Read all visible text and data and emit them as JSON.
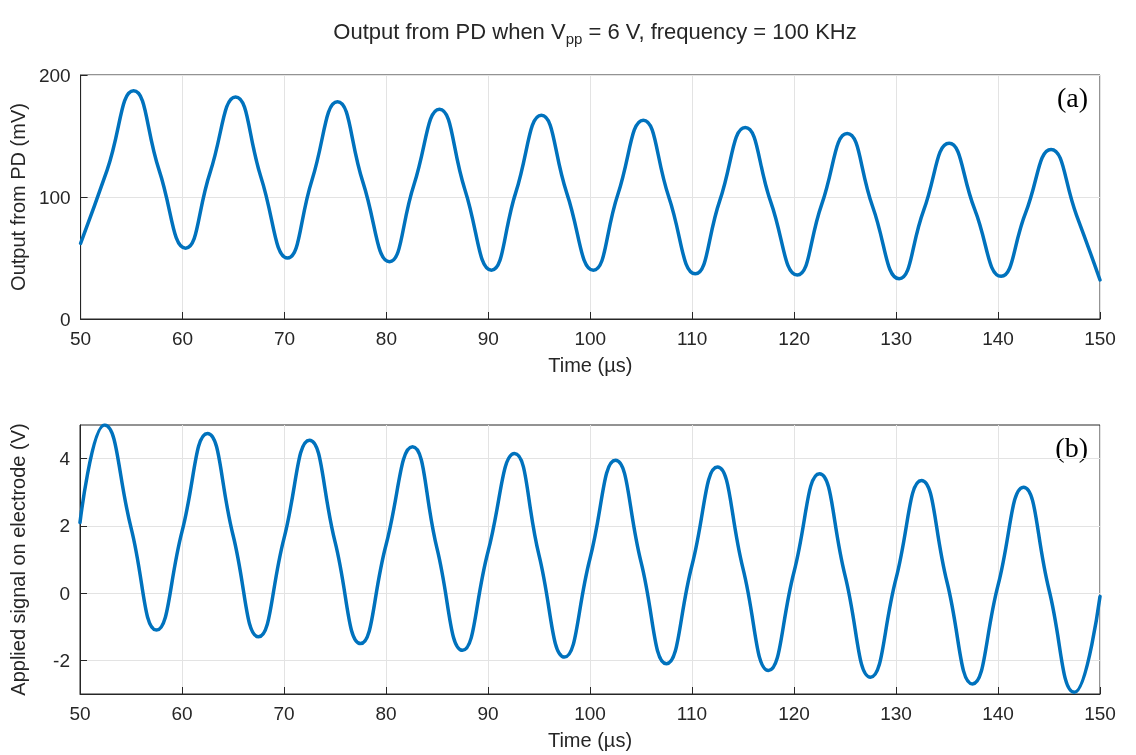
{
  "chart_data": [
    {
      "type": "line",
      "title": "Output from PD when V$_{pp}$ = 6 V, frequency = 100 KHz",
      "xlabel": "Time (µs)",
      "ylabel": "Output from PD (mV)",
      "annotations": [
        "(a)"
      ],
      "x": [
        50,
        52.6,
        55.2,
        57.7,
        60.3,
        62.7,
        65.2,
        67.7,
        70.3,
        72.7,
        75.2,
        77.7,
        80.3,
        82.7,
        85.2,
        87.7,
        90.3,
        92.7,
        95.2,
        97.7,
        100.3,
        102.7,
        105.2,
        107.7,
        110.3,
        112.7,
        115.2,
        117.7,
        120.3,
        122.7,
        125.2,
        127.7,
        130.3,
        132.7,
        135.2,
        137.7,
        140.3,
        142.7,
        145.2,
        147.7,
        150
      ],
      "series": [
        {
          "color": "#0072bd",
          "values": [
            62,
            122,
            187,
            122,
            58,
            120,
            182,
            116,
            50,
            114,
            178,
            112,
            47,
            110,
            172,
            106,
            40,
            104,
            167,
            103,
            40,
            102,
            163,
            100,
            37,
            97,
            157,
            96,
            36,
            94,
            152,
            92,
            33,
            89,
            144,
            90,
            35,
            87,
            139,
            85,
            32
          ]
        }
      ],
      "xlim": [
        50,
        150
      ],
      "xticks": [
        50,
        60,
        70,
        80,
        90,
        100,
        110,
        120,
        130,
        140,
        150
      ],
      "ylim": [
        0,
        200
      ],
      "yticks": [
        0,
        100,
        200
      ],
      "grid": true,
      "marker": "none",
      "line_style": "solid"
    },
    {
      "type": "line",
      "xlabel": "Time (µs)",
      "ylabel": "Applied signal on electrode (V)",
      "annotations": [
        "(b)"
      ],
      "x": [
        50,
        52.4,
        55,
        57.5,
        60,
        62.5,
        65,
        67.5,
        70,
        72.5,
        75,
        77.5,
        80,
        82.6,
        85,
        87.5,
        90,
        92.6,
        95,
        97.5,
        100,
        102.5,
        105,
        107.5,
        110,
        112.5,
        115,
        117.5,
        120,
        122.5,
        125,
        127.5,
        130,
        132.5,
        135,
        137.5,
        140,
        142.5,
        145,
        147.5,
        150
      ],
      "series": [
        {
          "color": "#0072bd",
          "values": [
            2.1,
            5.0,
            1.95,
            -1.1,
            1.83,
            4.75,
            1.73,
            -1.3,
            1.63,
            4.55,
            1.53,
            -1.5,
            1.43,
            4.35,
            1.33,
            -1.7,
            1.23,
            4.15,
            1.13,
            -1.9,
            1.03,
            3.95,
            0.93,
            -2.1,
            0.83,
            3.75,
            0.73,
            -2.3,
            0.63,
            3.55,
            0.53,
            -2.5,
            0.43,
            3.35,
            0.33,
            -2.7,
            0.23,
            3.15,
            0.1,
            -2.95,
            -0.1
          ]
        }
      ],
      "xlim": [
        50,
        150
      ],
      "xticks": [
        50,
        60,
        70,
        80,
        90,
        100,
        110,
        120,
        130,
        140,
        150
      ],
      "ylim": [
        -3,
        5
      ],
      "yticks": [
        -2,
        0,
        2,
        4
      ],
      "grid": true,
      "marker": "none",
      "line_style": "solid"
    }
  ]
}
